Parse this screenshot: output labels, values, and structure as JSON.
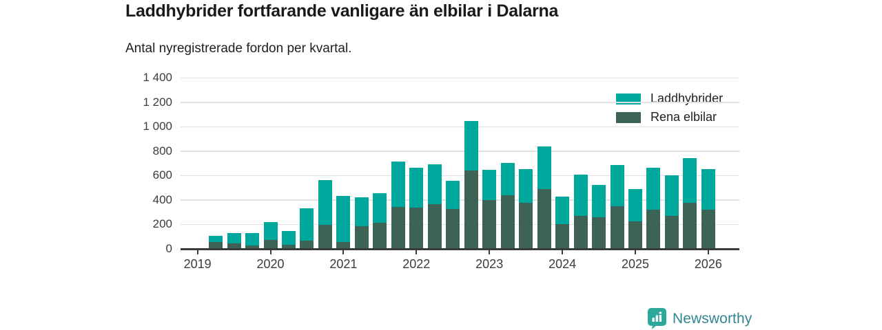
{
  "header": {
    "title": "Laddhybrider fortfarande vanligare än elbilar i Dalarna",
    "subtitle": "Antal nyregistrerade fordon per kvartal."
  },
  "legend": [
    {
      "label": "Laddhybrider",
      "color": "#00a79c"
    },
    {
      "label": "Rena elbilar",
      "color": "#3d6357"
    }
  ],
  "footer": {
    "brand": "Newsworthy",
    "logo_icon": "bar-chart-badge-icon",
    "brand_text_color": "#2f8591",
    "badge_color": "#2ea89d"
  },
  "chart_data": {
    "type": "bar",
    "stacked": true,
    "title": "Laddhybrider fortfarande vanligare än elbilar i Dalarna",
    "subtitle": "Antal nyregistrerade fordon per kvartal.",
    "x": [
      "2019 Q2",
      "2019 Q3",
      "2019 Q4",
      "2020 Q1",
      "2020 Q2",
      "2020 Q3",
      "2020 Q4",
      "2021 Q1",
      "2021 Q2",
      "2021 Q3",
      "2021 Q4",
      "2022 Q1",
      "2022 Q2",
      "2022 Q3",
      "2022 Q4",
      "2023 Q1",
      "2023 Q2",
      "2023 Q3",
      "2023 Q4",
      "2024 Q1",
      "2024 Q2",
      "2024 Q3",
      "2024 Q4",
      "2025 Q1",
      "2025 Q2",
      "2025 Q3",
      "2025 Q4",
      "2026 Q1"
    ],
    "series": [
      {
        "name": "Rena elbilar",
        "color": "#3d6357",
        "values": [
          55,
          45,
          30,
          75,
          35,
          70,
          195,
          55,
          185,
          215,
          345,
          335,
          365,
          325,
          640,
          400,
          440,
          375,
          490,
          200,
          270,
          260,
          350,
          225,
          320,
          270,
          380,
          320
        ]
      },
      {
        "name": "Laddhybrider",
        "color": "#00a79c",
        "values": [
          50,
          85,
          100,
          145,
          110,
          260,
          370,
          380,
          240,
          240,
          370,
          330,
          330,
          235,
          405,
          245,
          265,
          280,
          350,
          230,
          340,
          265,
          335,
          265,
          345,
          335,
          365,
          335
        ]
      }
    ],
    "xticks": [
      2019,
      2020,
      2021,
      2022,
      2023,
      2024,
      2025,
      2026
    ],
    "yticks": [
      0,
      200,
      400,
      600,
      800,
      1000,
      1200,
      1400
    ],
    "ylim": [
      0,
      1400
    ],
    "grid": true,
    "legend_position": "top-right",
    "ylabel": "",
    "xlabel": ""
  }
}
